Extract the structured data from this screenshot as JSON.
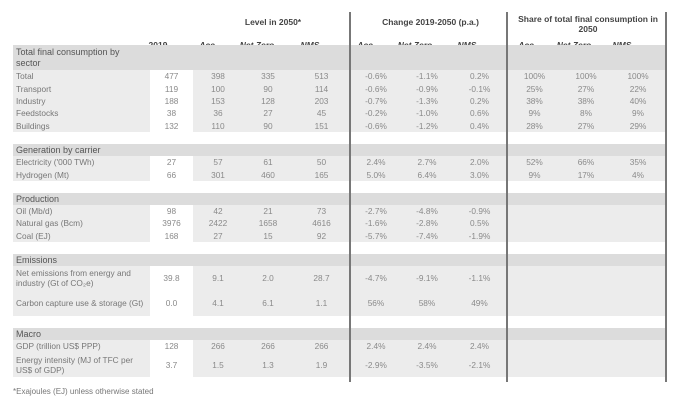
{
  "headers": {
    "level": "Level in 2050*",
    "change": "Change 2019-2050 (p.a.)",
    "share": "Share of total final consumption in 2050"
  },
  "columns": [
    "2019",
    "Acc",
    "Net Zero",
    "NMS",
    "Acc",
    "Net Zero",
    "NMS",
    "Acc",
    "Net Zero",
    "NMS"
  ],
  "sections": [
    {
      "title": "Total final consumption by sector",
      "rows": [
        {
          "label": "Total",
          "values": [
            "477",
            "398",
            "335",
            "513",
            "-0.6%",
            "-1.1%",
            "0.2%",
            "100%",
            "100%",
            "100%"
          ]
        },
        {
          "label": "Transport",
          "values": [
            "119",
            "100",
            "90",
            "114",
            "-0.6%",
            "-0.9%",
            "-0.1%",
            "25%",
            "27%",
            "22%"
          ]
        },
        {
          "label": "Industry",
          "values": [
            "188",
            "153",
            "128",
            "203",
            "-0.7%",
            "-1.3%",
            "0.2%",
            "38%",
            "38%",
            "40%"
          ]
        },
        {
          "label": "Feedstocks",
          "values": [
            "38",
            "36",
            "27",
            "45",
            "-0.2%",
            "-1.0%",
            "0.6%",
            "9%",
            "8%",
            "9%"
          ]
        },
        {
          "label": "Buildings",
          "values": [
            "132",
            "110",
            "90",
            "151",
            "-0.6%",
            "-1.2%",
            "0.4%",
            "28%",
            "27%",
            "29%"
          ]
        }
      ]
    },
    {
      "title": "Generation by carrier",
      "rows": [
        {
          "label": "Electricity ('000 TWh)",
          "values": [
            "27",
            "57",
            "61",
            "50",
            "2.4%",
            "2.7%",
            "2.0%",
            "52%",
            "66%",
            "35%"
          ]
        },
        {
          "label": "Hydrogen (Mt)",
          "values": [
            "66",
            "301",
            "460",
            "165",
            "5.0%",
            "6.4%",
            "3.0%",
            "9%",
            "17%",
            "4%"
          ]
        }
      ]
    },
    {
      "title": "Production",
      "rows": [
        {
          "label": "Oil (Mb/d)",
          "values": [
            "98",
            "42",
            "21",
            "73",
            "-2.7%",
            "-4.8%",
            "-0.9%",
            "",
            "",
            ""
          ]
        },
        {
          "label": "Natural gas (Bcm)",
          "values": [
            "3976",
            "2422",
            "1658",
            "4616",
            "-1.6%",
            "-2.8%",
            "0.5%",
            "",
            "",
            ""
          ]
        },
        {
          "label": "Coal (EJ)",
          "values": [
            "168",
            "27",
            "15",
            "92",
            "-5.7%",
            "-7.4%",
            "-1.9%",
            "",
            "",
            ""
          ]
        }
      ]
    },
    {
      "title": "Emissions",
      "rows": [
        {
          "label": "Net emissions from energy and industry (Gt of CO₂e)",
          "values": [
            "39.8",
            "9.1",
            "2.0",
            "28.7",
            "-4.7%",
            "-9.1%",
            "-1.1%",
            "",
            "",
            ""
          ]
        },
        {
          "label": "Carbon capture use & storage (Gt)",
          "values": [
            "0.0",
            "4.1",
            "6.1",
            "1.1",
            "56%",
            "58%",
            "49%",
            "",
            "",
            ""
          ]
        }
      ]
    },
    {
      "title": "Macro",
      "rows": [
        {
          "label": "GDP (trillion US$ PPP)",
          "values": [
            "128",
            "266",
            "266",
            "266",
            "2.4%",
            "2.4%",
            "2.4%",
            "",
            "",
            ""
          ]
        },
        {
          "label": "Energy intensity (MJ of TFC per US$ of GDP)",
          "values": [
            "3.7",
            "1.5",
            "1.3",
            "1.9",
            "-2.9%",
            "-3.5%",
            "-2.1%",
            "",
            "",
            ""
          ]
        }
      ]
    }
  ],
  "footnote": "*Exajoules (EJ) unless otherwise stated"
}
